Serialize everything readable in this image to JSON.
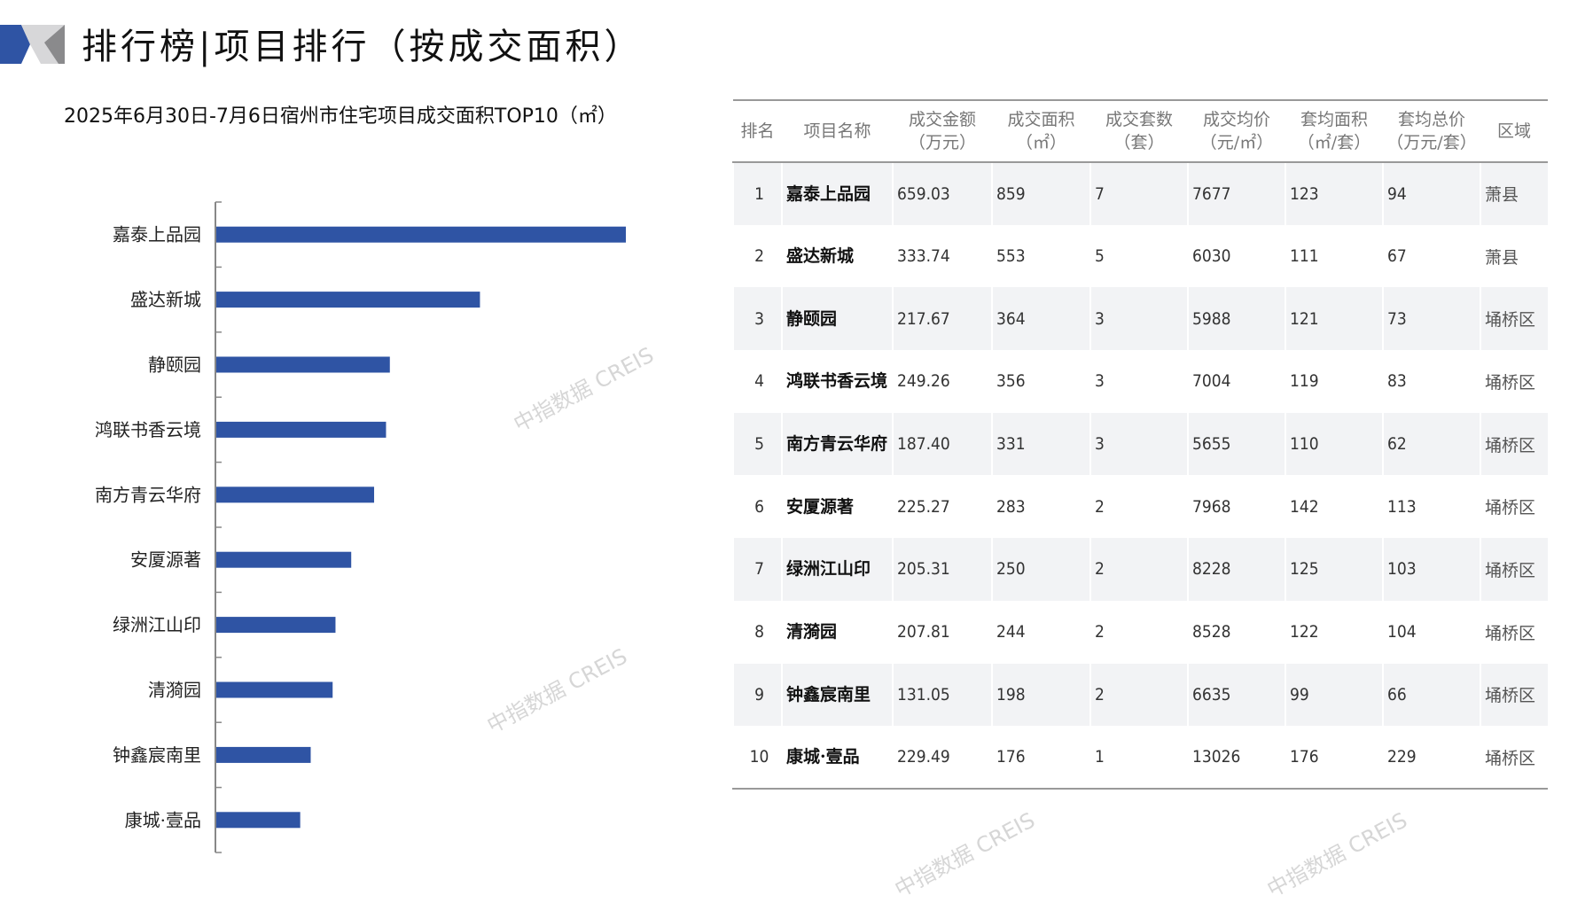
{
  "header": {
    "title": "排行榜|项目排行（按成交面积）"
  },
  "watermark": "中指数据 CREIS",
  "chart_data": {
    "type": "bar",
    "orientation": "horizontal",
    "title": "2025年6月30日-7月6日宿州市住宅项目成交面积TOP10（㎡）",
    "categories": [
      "嘉泰上品园",
      "盛达新城",
      "静颐园",
      "鸿联书香云境",
      "南方青云华府",
      "安厦源著",
      "绿洲江山印",
      "清漪园",
      "钟鑫宸南里",
      "康城·壹品"
    ],
    "values": [
      859,
      553,
      364,
      356,
      331,
      283,
      250,
      244,
      198,
      176
    ],
    "color": "#2f54a4",
    "grid": false
  },
  "table": {
    "headers": [
      [
        "排名"
      ],
      [
        "项目名称"
      ],
      [
        "成交金额",
        "（万元）"
      ],
      [
        "成交面积",
        "（㎡）"
      ],
      [
        "成交套数",
        "（套）"
      ],
      [
        "成交均价",
        "（元/㎡）"
      ],
      [
        "套均面积",
        "（㎡/套）"
      ],
      [
        "套均总价",
        "（万元/套）"
      ],
      [
        "区域"
      ]
    ],
    "rows": [
      [
        "1",
        "嘉泰上品园",
        "659.03",
        "859",
        "7",
        "7677",
        "123",
        "94",
        "萧县"
      ],
      [
        "2",
        "盛达新城",
        "333.74",
        "553",
        "5",
        "6030",
        "111",
        "67",
        "萧县"
      ],
      [
        "3",
        "静颐园",
        "217.67",
        "364",
        "3",
        "5988",
        "121",
        "73",
        "埇桥区"
      ],
      [
        "4",
        "鸿联书香云境",
        "249.26",
        "356",
        "3",
        "7004",
        "119",
        "83",
        "埇桥区"
      ],
      [
        "5",
        "南方青云华府",
        "187.40",
        "331",
        "3",
        "5655",
        "110",
        "62",
        "埇桥区"
      ],
      [
        "6",
        "安厦源著",
        "225.27",
        "283",
        "2",
        "7968",
        "142",
        "113",
        "埇桥区"
      ],
      [
        "7",
        "绿洲江山印",
        "205.31",
        "250",
        "2",
        "8228",
        "125",
        "103",
        "埇桥区"
      ],
      [
        "8",
        "清漪园",
        "207.81",
        "244",
        "2",
        "8528",
        "122",
        "104",
        "埇桥区"
      ],
      [
        "9",
        "钟鑫宸南里",
        "131.05",
        "198",
        "2",
        "6635",
        "99",
        "66",
        "埇桥区"
      ],
      [
        "10",
        "康城·壹品",
        "229.49",
        "176",
        "1",
        "13026",
        "176",
        "229",
        "埇桥区"
      ]
    ]
  }
}
